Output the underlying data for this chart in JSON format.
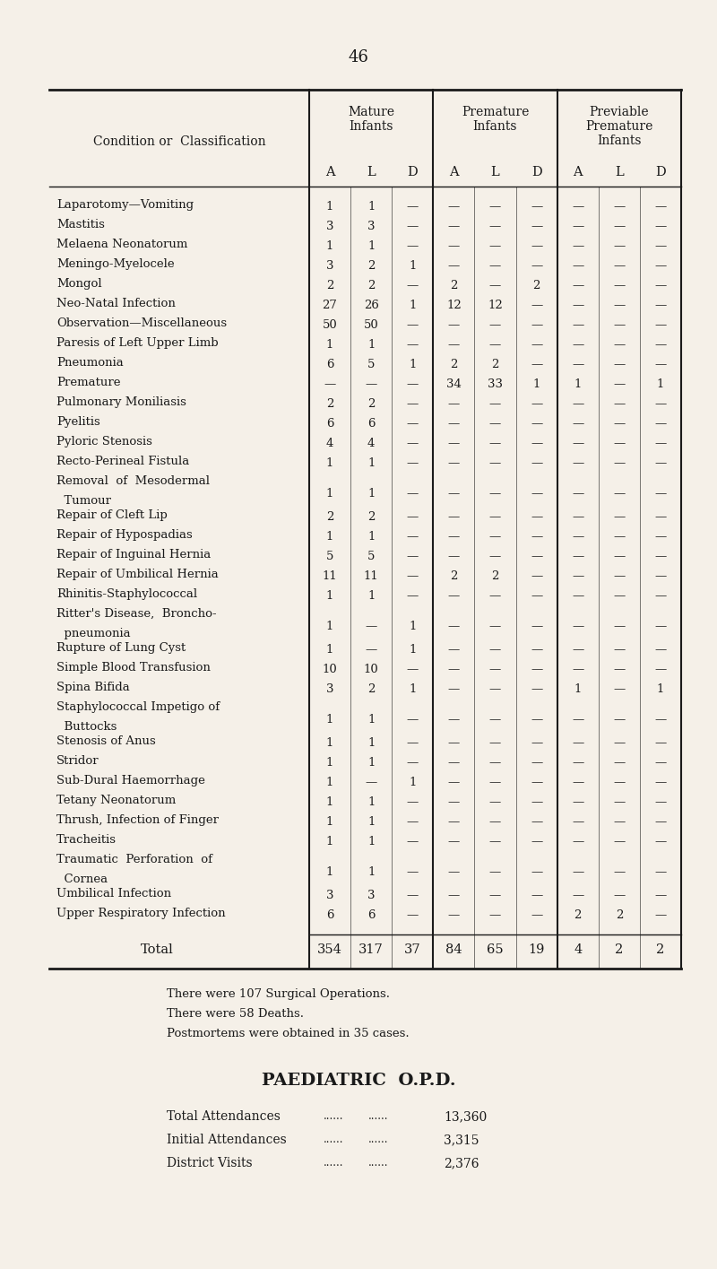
{
  "page_number": "46",
  "bg_color": "#f5f0e8",
  "text_color": "#1a1a1a",
  "title_col": "Condition or  Classification",
  "group_names": [
    "Mature\nInfants",
    "Premature\nInfants",
    "Previable\nPremature\nInfants"
  ],
  "sub_headers": [
    "A",
    "L",
    "D"
  ],
  "rows": [
    {
      "label": "Laparotomy—Vomiting",
      "dots": "......",
      "two_line": false,
      "data": [
        "1",
        "1",
        "—",
        "—",
        "—",
        "—",
        "—",
        "—",
        "—"
      ]
    },
    {
      "label": "Mastitis",
      "dots": "...... ......",
      "two_line": false,
      "data": [
        "3",
        "3",
        "—",
        "—",
        "—",
        "—",
        "—",
        "—",
        "—"
      ]
    },
    {
      "label": "Melaena Neonatorum",
      "dots": "......",
      "two_line": false,
      "data": [
        "1",
        "1",
        "—",
        "—",
        "—",
        "—",
        "—",
        "—",
        "—"
      ]
    },
    {
      "label": "Meningo-Myelocele",
      "dots": "......",
      "two_line": false,
      "data": [
        "3",
        "2",
        "1",
        "—",
        "—",
        "—",
        "—",
        "—",
        "—"
      ]
    },
    {
      "label": "Mongol",
      "dots": "...... ......",
      "two_line": false,
      "data": [
        "2",
        "2",
        "—",
        "2",
        "—",
        "2",
        "—",
        "—",
        "—"
      ]
    },
    {
      "label": "Neo-Natal Infection",
      "dots": "......",
      "two_line": false,
      "data": [
        "27",
        "26",
        "1",
        "12",
        "12",
        "—",
        "—",
        "—",
        "—"
      ]
    },
    {
      "label": "Observation—Miscellaneous",
      "dots": "",
      "two_line": false,
      "data": [
        "50",
        "50",
        "—",
        "—",
        "—",
        "—",
        "—",
        "—",
        "—"
      ]
    },
    {
      "label": "Paresis of Left Upper Limb",
      "dots": "",
      "two_line": false,
      "data": [
        "1",
        "1",
        "—",
        "—",
        "—",
        "—",
        "—",
        "—",
        "—"
      ]
    },
    {
      "label": "Pneumonia",
      "dots": "...... ...... ―",
      "two_line": false,
      "data": [
        "6",
        "5",
        "1",
        "2",
        "2",
        "—",
        "—",
        "—",
        "—"
      ]
    },
    {
      "label": "Premature",
      "dots": "...... ......",
      "two_line": false,
      "data": [
        "—",
        "—",
        "—",
        "34",
        "33",
        "1",
        "1",
        "—",
        "1"
      ]
    },
    {
      "label": "Pulmonary Moniliasis",
      "dots": "......",
      "two_line": false,
      "data": [
        "2",
        "2",
        "—",
        "—",
        "—",
        "—",
        "—",
        "—",
        "—"
      ]
    },
    {
      "label": "Pyelitis",
      "dots": "...... ......",
      "two_line": false,
      "data": [
        "6",
        "6",
        "—",
        "—",
        "—",
        "—",
        "—",
        "—",
        "—"
      ]
    },
    {
      "label": "Pyloric Stenosis",
      "dots": "...... ......",
      "two_line": false,
      "data": [
        "4",
        "4",
        "—",
        "—",
        "—",
        "—",
        "—",
        "—",
        "—"
      ]
    },
    {
      "label": "Recto-Perineal Fistula",
      "dots": "......",
      "two_line": false,
      "data": [
        "1",
        "1",
        "—",
        "—",
        "—",
        "—",
        "—",
        "—",
        "—"
      ]
    },
    {
      "label": "Removal  of  Mesodermal",
      "label2": "  Tumour",
      "dots": "...... ...... ......",
      "two_line": true,
      "data": [
        "1",
        "1",
        "—",
        "—",
        "—",
        "—",
        "—",
        "—",
        "—"
      ]
    },
    {
      "label": "Repair of Cleft Lip",
      "dots": "...... ......",
      "two_line": false,
      "data": [
        "2",
        "2",
        "—",
        "—",
        "—",
        "—",
        "—",
        "—",
        "—"
      ]
    },
    {
      "label": "Repair of Hypospadias",
      "dots": "......",
      "two_line": false,
      "data": [
        "1",
        "1",
        "—",
        "—",
        "—",
        "—",
        "—",
        "—",
        "—"
      ]
    },
    {
      "label": "Repair of Inguinal Hernia",
      "dots": "......",
      "two_line": false,
      "data": [
        "5",
        "5",
        "—",
        "—",
        "—",
        "—",
        "—",
        "—",
        "—"
      ]
    },
    {
      "label": "Repair of Umbilical Hernia",
      "dots": "",
      "two_line": false,
      "data": [
        "11",
        "11",
        "—",
        "2",
        "2",
        "—",
        "—",
        "—",
        "—"
      ]
    },
    {
      "label": "Rhinitis-Staphylococcal",
      "dots": "......",
      "two_line": false,
      "data": [
        "1",
        "1",
        "—",
        "—",
        "—",
        "—",
        "—",
        "—",
        "—"
      ]
    },
    {
      "label": "Ritter's Disease,  Broncho-",
      "label2": "  pneumonia",
      "dots": "...... ......",
      "two_line": true,
      "data": [
        "1",
        "—",
        "1",
        "—",
        "—",
        "—",
        "—",
        "—",
        "—"
      ]
    },
    {
      "label": "Rupture of Lung Cyst",
      "dots": "......",
      "two_line": false,
      "data": [
        "1",
        "—",
        "1",
        "—",
        "—",
        "—",
        "—",
        "—",
        "—"
      ]
    },
    {
      "label": "Simple Blood Transfusion",
      "dots": "......",
      "two_line": false,
      "data": [
        "10",
        "10",
        "—",
        "—",
        "—",
        "—",
        "—",
        "—",
        "—"
      ]
    },
    {
      "label": "Spina Bifida",
      "dots": "...... ......",
      "two_line": false,
      "data": [
        "3",
        "2",
        "1",
        "—",
        "—",
        "—",
        "1",
        "—",
        "1"
      ]
    },
    {
      "label": "Staphylococcal Impetigo of",
      "label2": "  Buttocks",
      "dots": "...... ...... ......",
      "two_line": true,
      "data": [
        "1",
        "1",
        "—",
        "—",
        "—",
        "—",
        "—",
        "—",
        "—"
      ]
    },
    {
      "label": "Stenosis of Anus",
      "dots": "...... ......",
      "two_line": false,
      "data": [
        "1",
        "1",
        "—",
        "—",
        "—",
        "—",
        "—",
        "—",
        "—"
      ]
    },
    {
      "label": "Stridor",
      "dots": "...... ......",
      "two_line": false,
      "data": [
        "1",
        "1",
        "—",
        "—",
        "—",
        "—",
        "—",
        "—",
        "—"
      ]
    },
    {
      "label": "Sub-Dural Haemorrhage",
      "dots": "......",
      "two_line": false,
      "data": [
        "1",
        "—",
        "1",
        "—",
        "—",
        "—",
        "—",
        "—",
        "—"
      ]
    },
    {
      "label": "Tetany Neonatorum",
      "dots": "......",
      "two_line": false,
      "data": [
        "1",
        "1",
        "—",
        "—",
        "—",
        "—",
        "—",
        "—",
        "—"
      ]
    },
    {
      "label": "Thrush, Infection of Finger",
      "dots": "",
      "two_line": false,
      "data": [
        "1",
        "1",
        "—",
        "—",
        "—",
        "—",
        "—",
        "—",
        "—"
      ]
    },
    {
      "label": "Tracheitis",
      "dots": "...... ...... ......",
      "two_line": false,
      "data": [
        "1",
        "1",
        "—",
        "—",
        "—",
        "—",
        "—",
        "—",
        "—"
      ]
    },
    {
      "label": "Traumatic  Perforation  of",
      "label2": "  Cornea",
      "dots": "...... ...... ......",
      "two_line": true,
      "data": [
        "1",
        "1",
        "—",
        "—",
        "—",
        "—",
        "—",
        "—",
        "—"
      ]
    },
    {
      "label": "Umbilical Infection",
      "dots": "...... ......",
      "two_line": false,
      "data": [
        "3",
        "3",
        "—",
        "—",
        "—",
        "—",
        "—",
        "—",
        "—"
      ]
    },
    {
      "label": "Upper Respiratory Infection",
      "dots": "",
      "two_line": false,
      "data": [
        "6",
        "6",
        "—",
        "—",
        "—",
        "—",
        "2",
        "2",
        "—"
      ]
    }
  ],
  "totals": [
    "354",
    "317",
    "37",
    "84",
    "65",
    "19",
    "4",
    "2",
    "2"
  ],
  "footnotes": [
    "There were 107 Surgical Operations.",
    "There were 58 Deaths.",
    "Postmortems were obtained in 35 cases."
  ],
  "opd_title": "PAEDIATRIC  O.P.D.",
  "opd_rows": [
    {
      "label": "Total Attendances",
      "dots1": "......",
      "dots2": "......",
      "value": "13,360"
    },
    {
      "label": "Initial Attendances",
      "dots1": "......",
      "dots2": "......",
      "value": "3,315"
    },
    {
      "label": "District Visits",
      "dots1": "......",
      "dots2": "......",
      "value": "2,376"
    }
  ],
  "figsize": [
    8.0,
    14.15
  ],
  "dpi": 100
}
